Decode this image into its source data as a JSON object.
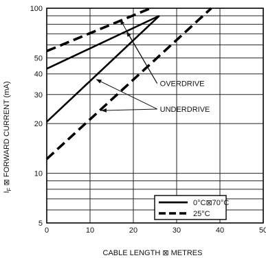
{
  "chart_data": {
    "type": "line",
    "title": "",
    "xlabel": "CABLE LENGTH ⊠ METRES",
    "ylabel": "I_F ⊠ FORWARD CURRENT (mA)",
    "ylabel_main": "I",
    "ylabel_sub": "F",
    "ylabel_rest": " ⊠ FORWARD CURRENT (mA)",
    "xlim": [
      0,
      50
    ],
    "ylim": [
      5,
      100
    ],
    "yscale": "log",
    "grid": true,
    "x_ticks": [
      0,
      10,
      20,
      30,
      40,
      50
    ],
    "x_tick_labels": [
      "0",
      "10",
      "20",
      "30",
      "40",
      "50"
    ],
    "y_ticks": [
      5,
      10,
      20,
      30,
      40,
      50,
      100
    ],
    "y_tick_labels": [
      "5",
      "10",
      "20",
      "30",
      "40",
      "50",
      "100"
    ],
    "legend_position": "bottom-right",
    "series": [
      {
        "name": "0°C⊠70°C",
        "style": "solid",
        "color": "#000000",
        "lines": [
          {
            "group": "OVERDRIVE",
            "points": [
              [
                0,
                43
              ],
              [
                26,
                90
              ]
            ]
          },
          {
            "group": "UNDERDRIVE",
            "points": [
              [
                0,
                20.5
              ],
              [
                26,
                90
              ]
            ]
          }
        ]
      },
      {
        "name": "25°C",
        "style": "dashed",
        "color": "#000000",
        "lines": [
          {
            "group": "OVERDRIVE",
            "points": [
              [
                0,
                55
              ],
              [
                24,
                100
              ]
            ]
          },
          {
            "group": "UNDERDRIVE",
            "points": [
              [
                0,
                12.2
              ],
              [
                38,
                100
              ]
            ]
          }
        ]
      }
    ],
    "annotations": [
      {
        "text": "OVERDRIVE",
        "x": 25.5,
        "y": 35,
        "targets": [
          [
            17,
            85
          ],
          [
            18.5,
            72
          ]
        ]
      },
      {
        "text": "UNDERDRIVE",
        "x": 25.5,
        "y": 24.5,
        "targets": [
          [
            11.5,
            37
          ],
          [
            12.7,
            24
          ]
        ]
      }
    ]
  }
}
